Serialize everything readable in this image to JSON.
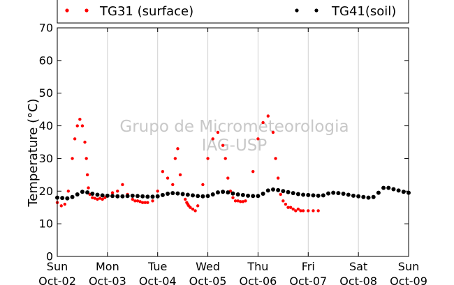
{
  "chart_data": {
    "type": "scatter",
    "title": "",
    "xlabel": "",
    "ylabel": "Temperature (°C)",
    "ylim": [
      0,
      70
    ],
    "yticks": [
      "0",
      "10",
      "20",
      "30",
      "40",
      "50",
      "60",
      "70"
    ],
    "xlim": [
      0,
      7
    ],
    "xtick_days": [
      "Sun",
      "Mon",
      "Tue",
      "Wed",
      "Thu",
      "Fri",
      "Sat",
      "Sun"
    ],
    "xtick_dates": [
      "Oct-02",
      "Oct-03",
      "Oct-04",
      "Oct-05",
      "Oct-06",
      "Oct-07",
      "Oct-08",
      "Oct-09"
    ],
    "grid": "vertical",
    "legend_position": "top",
    "watermark": [
      "Grupo de Micrometeorologia",
      "IAG-USP"
    ],
    "series": [
      {
        "name": "TG31 (surface)",
        "color": "#ff0000",
        "x": [
          0.0,
          0.08,
          0.15,
          0.22,
          0.3,
          0.35,
          0.4,
          0.45,
          0.5,
          0.55,
          0.58,
          0.6,
          0.62,
          0.65,
          0.7,
          0.75,
          0.8,
          0.85,
          0.9,
          0.95,
          1.0,
          1.1,
          1.2,
          1.3,
          1.4,
          1.5,
          1.55,
          1.6,
          1.65,
          1.7,
          1.75,
          1.8,
          1.9,
          2.0,
          2.1,
          2.2,
          2.3,
          2.35,
          2.4,
          2.45,
          2.5,
          2.55,
          2.58,
          2.6,
          2.62,
          2.65,
          2.7,
          2.75,
          2.8,
          2.9,
          3.0,
          3.1,
          3.2,
          3.3,
          3.35,
          3.4,
          3.45,
          3.5,
          3.55,
          3.6,
          3.65,
          3.7,
          3.75,
          3.8,
          3.9,
          4.0,
          4.1,
          4.2,
          4.3,
          4.35,
          4.4,
          4.45,
          4.5,
          4.55,
          4.6,
          4.65,
          4.7,
          4.75,
          4.8,
          4.85,
          4.9,
          5.0,
          5.1,
          5.2
        ],
        "y": [
          16.5,
          15.5,
          16.0,
          20.0,
          30.0,
          36.0,
          40.0,
          42.0,
          40.0,
          35.0,
          30.0,
          25.0,
          21.0,
          19.0,
          18.0,
          17.8,
          17.5,
          17.8,
          17.5,
          18.0,
          18.5,
          19.5,
          20.0,
          22.0,
          19.0,
          17.5,
          17.0,
          17.0,
          16.8,
          16.5,
          16.5,
          16.5,
          17.0,
          20.0,
          26.0,
          24.0,
          22.0,
          30.0,
          33.0,
          25.0,
          19.0,
          17.5,
          16.5,
          16.0,
          15.5,
          15.0,
          14.5,
          14.0,
          15.5,
          22.0,
          30.0,
          36.0,
          38.0,
          34.0,
          30.0,
          24.0,
          20.0,
          18.0,
          17.0,
          17.0,
          16.8,
          16.8,
          17.0,
          18.5,
          26.0,
          36.0,
          41.0,
          43.0,
          38.0,
          30.0,
          24.0,
          19.0,
          17.0,
          16.0,
          15.0,
          15.0,
          14.5,
          14.0,
          14.5,
          14.0,
          14.0,
          14.0,
          14.0,
          14.0
        ]
      },
      {
        "name": "TG41(soil)",
        "color": "#000000",
        "x": [
          0.0,
          0.1,
          0.2,
          0.3,
          0.4,
          0.5,
          0.6,
          0.7,
          0.8,
          0.9,
          1.0,
          1.1,
          1.2,
          1.3,
          1.4,
          1.5,
          1.6,
          1.7,
          1.8,
          1.9,
          2.0,
          2.1,
          2.2,
          2.3,
          2.4,
          2.5,
          2.6,
          2.7,
          2.8,
          2.9,
          3.0,
          3.1,
          3.2,
          3.3,
          3.4,
          3.5,
          3.6,
          3.7,
          3.8,
          3.9,
          4.0,
          4.1,
          4.2,
          4.3,
          4.4,
          4.5,
          4.6,
          4.7,
          4.8,
          4.9,
          5.0,
          5.1,
          5.2,
          5.3,
          5.4,
          5.5,
          5.6,
          5.7,
          5.8,
          5.9,
          6.0,
          6.1,
          6.2,
          6.3,
          6.4,
          6.5,
          6.6,
          6.7,
          6.8,
          6.9,
          7.0
        ],
        "y": [
          18.0,
          17.9,
          17.8,
          18.2,
          19.0,
          19.8,
          19.6,
          19.2,
          18.9,
          18.7,
          18.6,
          18.5,
          18.4,
          18.4,
          18.5,
          18.6,
          18.5,
          18.4,
          18.3,
          18.3,
          18.4,
          18.8,
          19.2,
          19.4,
          19.3,
          19.1,
          18.9,
          18.7,
          18.5,
          18.4,
          18.5,
          19.0,
          19.6,
          19.8,
          19.6,
          19.3,
          19.0,
          18.8,
          18.6,
          18.5,
          18.5,
          19.2,
          20.2,
          20.5,
          20.3,
          20.0,
          19.7,
          19.4,
          19.1,
          18.9,
          18.8,
          18.7,
          18.6,
          18.7,
          19.3,
          19.5,
          19.4,
          19.2,
          18.9,
          18.6,
          18.4,
          18.2,
          18.0,
          18.2,
          19.5,
          21.0,
          21.0,
          20.6,
          20.2,
          19.8,
          19.5
        ]
      }
    ]
  }
}
